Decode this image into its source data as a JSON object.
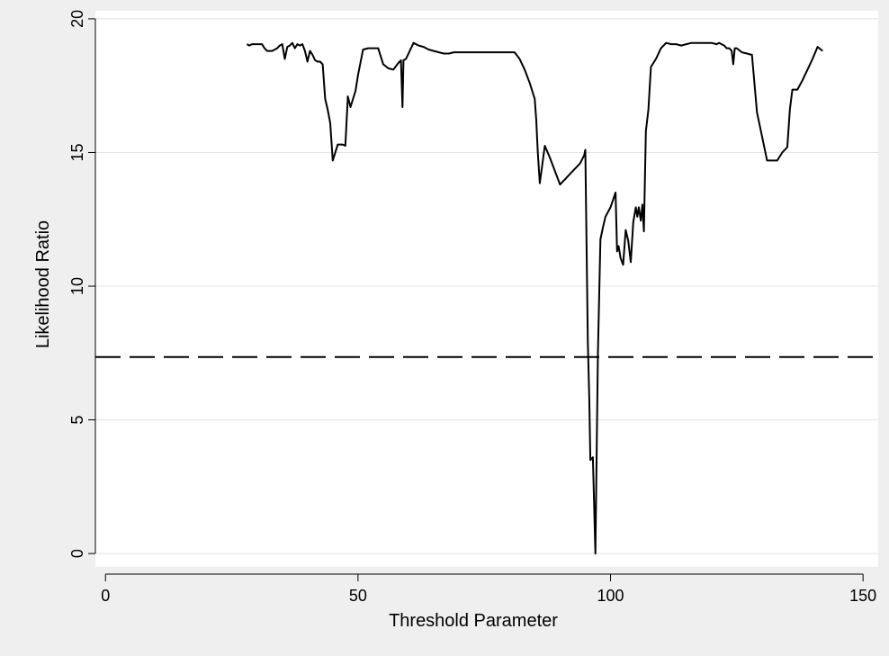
{
  "chart_data": {
    "type": "line",
    "xlabel": "Threshold Parameter",
    "ylabel": "Likelihood Ratio",
    "xlim": [
      -2,
      153
    ],
    "ylim": [
      -0.5,
      20.3
    ],
    "xticks": [
      0,
      50,
      100,
      150
    ],
    "yticks": [
      0,
      5,
      10,
      15,
      20
    ],
    "xtick_labels": [
      "0",
      "50",
      "100",
      "150"
    ],
    "ytick_labels": [
      "0",
      "5",
      "10",
      "15",
      "20"
    ],
    "grid": "horizontal",
    "legend": "none",
    "reference_line": {
      "y": 7.35,
      "style": "dashed"
    },
    "series": [
      {
        "color": "#000000",
        "x": [
          28,
          28.5,
          29,
          30,
          31,
          31.5,
          32,
          33,
          34,
          34.5,
          35,
          35.5,
          36,
          36.5,
          37,
          37.5,
          38,
          38.5,
          39,
          39.5,
          40,
          40.5,
          41,
          41.5,
          42,
          42.5,
          43,
          43.5,
          44,
          44.5,
          45,
          46,
          47,
          47.5,
          48,
          48.5,
          49,
          49.5,
          50,
          51,
          52,
          53,
          54,
          55,
          56,
          57,
          58,
          58.5,
          58.8,
          59,
          59.5,
          60,
          61,
          62,
          63,
          64,
          65,
          66,
          67,
          68,
          69,
          70,
          71,
          72,
          73,
          74,
          75,
          76,
          77,
          78,
          79,
          80,
          81,
          82,
          83,
          84,
          85,
          85.3,
          85.6,
          86,
          87,
          88,
          89,
          90,
          91,
          92,
          93,
          94,
          94.8,
          95,
          95.5,
          95.8,
          96,
          96.5,
          97,
          97.5,
          98,
          98.5,
          99,
          100,
          101,
          101.3,
          101.6,
          102,
          102.5,
          103,
          103.5,
          104,
          104.5,
          105,
          105.3,
          105.6,
          106,
          106.3,
          106.6,
          107,
          107.5,
          108,
          109,
          110,
          111,
          112,
          113,
          114,
          115,
          116,
          117,
          118,
          119,
          120,
          121,
          121.5,
          122,
          122.5,
          123,
          123.5,
          124,
          124.3,
          124.6,
          125,
          126,
          127,
          128,
          129,
          130,
          131,
          132,
          133,
          134,
          135,
          135.5,
          136,
          137,
          138,
          139,
          140,
          141,
          142
        ],
        "y": [
          19.05,
          19.0,
          19.05,
          19.05,
          19.05,
          18.9,
          18.8,
          18.8,
          18.9,
          19.0,
          19.05,
          18.5,
          18.95,
          19.0,
          19.1,
          18.9,
          19.05,
          19.0,
          19.05,
          18.8,
          18.4,
          18.8,
          18.65,
          18.45,
          18.4,
          18.4,
          18.3,
          17.0,
          16.6,
          16.1,
          14.7,
          15.3,
          15.3,
          15.25,
          17.1,
          16.7,
          17.0,
          17.3,
          17.9,
          18.85,
          18.9,
          18.9,
          18.9,
          18.3,
          18.15,
          18.1,
          18.35,
          18.45,
          16.7,
          18.45,
          18.5,
          18.7,
          19.1,
          19.0,
          18.95,
          18.85,
          18.8,
          18.75,
          18.7,
          18.7,
          18.75,
          18.75,
          18.75,
          18.75,
          18.75,
          18.75,
          18.75,
          18.75,
          18.75,
          18.75,
          18.75,
          18.75,
          18.75,
          18.5,
          18.1,
          17.6,
          17.0,
          16.2,
          15.0,
          13.85,
          15.25,
          14.8,
          14.3,
          13.8,
          14.0,
          14.2,
          14.4,
          14.6,
          14.9,
          15.1,
          7.9,
          5.8,
          3.5,
          3.6,
          0.0,
          7.5,
          11.75,
          12.2,
          12.6,
          12.95,
          13.5,
          11.3,
          11.5,
          11.05,
          10.8,
          12.1,
          11.7,
          10.9,
          12.4,
          12.95,
          12.6,
          12.95,
          12.45,
          13.05,
          12.05,
          15.8,
          16.6,
          18.2,
          18.5,
          18.9,
          19.1,
          19.05,
          19.05,
          19.0,
          19.05,
          19.1,
          19.1,
          19.1,
          19.1,
          19.1,
          19.05,
          19.1,
          19.05,
          19.0,
          18.9,
          18.9,
          18.8,
          18.3,
          18.9,
          18.9,
          18.75,
          18.7,
          18.65,
          16.5,
          15.6,
          14.7,
          14.7,
          14.7,
          15.0,
          15.2,
          16.6,
          17.35,
          17.35,
          17.7,
          18.1,
          18.5,
          18.95,
          18.8
        ]
      }
    ]
  }
}
